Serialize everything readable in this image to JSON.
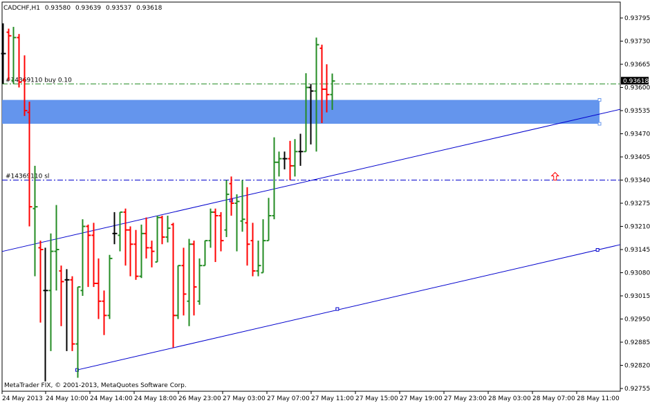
{
  "header": {
    "symbol": "CADCHF,H1",
    "open": "0.93580",
    "high": "0.93639",
    "low": "0.93537",
    "close": "0.93618"
  },
  "copyright": "MetaTrader FIX, © 2001-2013, MetaQuotes Software Corp.",
  "order_labels": {
    "buy": "#14369110 buy 0.10",
    "sl": "#14369110 sl"
  },
  "current_price_tag": "0.93618",
  "colors": {
    "up_bar": "#228b22",
    "down_bar": "#ff0000",
    "neutral_bar": "#000000",
    "channel": "#0000cd",
    "zone": "#6495ed",
    "order_line": "#228b22",
    "sl_line": "#0000cd",
    "arrow": "#ff0000"
  },
  "chart_data": {
    "type": "ohlc",
    "y_ticks": [
      "0.93795",
      "0.93730",
      "0.93665",
      "0.93600",
      "0.93535",
      "0.93470",
      "0.93405",
      "0.93340",
      "0.93275",
      "0.93210",
      "0.93145",
      "0.93080",
      "0.93015",
      "0.92950",
      "0.92885",
      "0.92820",
      "0.92755"
    ],
    "ylim": [
      0.92745,
      0.93835
    ],
    "x_ticks": [
      "24 May 2013",
      "24 May 10:00",
      "24 May 14:00",
      "24 May 18:00",
      "26 May 23:00",
      "27 May 03:00",
      "27 May 07:00",
      "27 May 11:00",
      "27 May 15:00",
      "27 May 19:00",
      "27 May 23:00",
      "28 May 03:00",
      "28 May 07:00",
      "28 May 11:00"
    ],
    "buy_price": 0.9361,
    "sl_price": 0.9334,
    "zone": [
      0.93498,
      0.93565
    ],
    "channel_upper": [
      [
        0,
        0.9314
      ],
      [
        112,
        0.93524
      ]
    ],
    "channel_lower": [
      [
        14,
        0.92807
      ],
      [
        112,
        0.93144
      ]
    ],
    "bars": [
      [
        0.93695,
        0.9378,
        0.9361,
        0.93695
      ],
      [
        0.93755,
        0.93765,
        0.9362,
        0.93745
      ],
      [
        0.9362,
        0.9377,
        0.9361,
        0.9374
      ],
      [
        0.9374,
        0.9375,
        0.936,
        0.93615
      ],
      [
        0.9362,
        0.9369,
        0.9352,
        0.93535
      ],
      [
        0.9353,
        0.9356,
        0.9321,
        0.93265
      ],
      [
        0.9326,
        0.9338,
        0.9307,
        0.93265
      ],
      [
        0.9315,
        0.9317,
        0.9294,
        0.93145
      ],
      [
        0.9303,
        0.9315,
        0.92775,
        0.9303
      ],
      [
        0.9303,
        0.9319,
        0.9286,
        0.9314
      ],
      [
        0.9314,
        0.9327,
        0.9303,
        0.93145
      ],
      [
        0.93085,
        0.931,
        0.9293,
        0.93055
      ],
      [
        0.9306,
        0.9309,
        0.9286,
        0.9306
      ],
      [
        0.9306,
        0.9307,
        0.9286,
        0.9288
      ],
      [
        0.9288,
        0.9304,
        0.92785,
        0.9304
      ],
      [
        0.9303,
        0.9323,
        0.93015,
        0.9321
      ],
      [
        0.9321,
        0.93215,
        0.9304,
        0.93185
      ],
      [
        0.93185,
        0.9322,
        0.9304,
        0.9305
      ],
      [
        0.9305,
        0.9312,
        0.9295,
        0.93
      ],
      [
        0.93,
        0.9303,
        0.92905,
        0.9296
      ],
      [
        0.9296,
        0.9313,
        0.9295,
        0.9312
      ],
      [
        0.9319,
        0.9325,
        0.9316,
        0.9319
      ],
      [
        0.93185,
        0.9325,
        0.9314,
        0.9325
      ],
      [
        0.9325,
        0.9326,
        0.931,
        0.932
      ],
      [
        0.932,
        0.9321,
        0.9307,
        0.9316
      ],
      [
        0.9316,
        0.932,
        0.9306,
        0.9307
      ],
      [
        0.9307,
        0.93215,
        0.93065,
        0.9319
      ],
      [
        0.9319,
        0.93235,
        0.9312,
        0.9315
      ],
      [
        0.9315,
        0.9317,
        0.93095,
        0.9314
      ],
      [
        0.9311,
        0.9324,
        0.9311,
        0.93235
      ],
      [
        0.93235,
        0.9324,
        0.9316,
        0.9318
      ],
      [
        0.9318,
        0.9324,
        0.93165,
        0.93205
      ],
      [
        0.93215,
        0.9322,
        0.9287,
        0.9296
      ],
      [
        0.9296,
        0.931,
        0.9295,
        0.931
      ],
      [
        0.931,
        0.9315,
        0.9296,
        0.9302
      ],
      [
        0.93,
        0.93175,
        0.9293,
        0.9316
      ],
      [
        0.9316,
        0.9317,
        0.9296,
        0.9304
      ],
      [
        0.93,
        0.9312,
        0.9299,
        0.931
      ],
      [
        0.931,
        0.9317,
        0.931,
        0.9317
      ],
      [
        0.9317,
        0.9326,
        0.9315,
        0.9325
      ],
      [
        0.9325,
        0.9326,
        0.9311,
        0.9324
      ],
      [
        0.9324,
        0.9325,
        0.9314,
        0.9317
      ],
      [
        0.932,
        0.9334,
        0.9318,
        0.933
      ],
      [
        0.9333,
        0.9335,
        0.9324,
        0.93275
      ],
      [
        0.93275,
        0.933,
        0.9314,
        0.9328
      ],
      [
        0.93225,
        0.9334,
        0.93195,
        0.9323
      ],
      [
        0.9322,
        0.9332,
        0.931,
        0.9316
      ],
      [
        0.9317,
        0.9322,
        0.9307,
        0.93085
      ],
      [
        0.93085,
        0.9317,
        0.9307,
        0.931
      ],
      [
        0.9308,
        0.9323,
        0.9308,
        0.9317
      ],
      [
        0.9317,
        0.9329,
        0.9317,
        0.9324
      ],
      [
        0.9324,
        0.9346,
        0.9323,
        0.9339
      ],
      [
        0.9339,
        0.9342,
        0.9335,
        0.934
      ],
      [
        0.934,
        0.9342,
        0.9337,
        0.934
      ],
      [
        0.934,
        0.9345,
        0.9334,
        0.9338
      ],
      [
        0.9338,
        0.93455,
        0.9335,
        0.9342
      ],
      [
        0.9342,
        0.9347,
        0.9338,
        0.9342
      ],
      [
        0.9342,
        0.9364,
        0.9342,
        0.936
      ],
      [
        0.936,
        0.9361,
        0.9344,
        0.9359
      ],
      [
        0.9359,
        0.9374,
        0.9342,
        0.9372
      ],
      [
        0.9371,
        0.9372,
        0.935,
        0.93595
      ],
      [
        0.93595,
        0.93665,
        0.9353,
        0.9358
      ],
      [
        0.9358,
        0.93639,
        0.93537,
        0.93618
      ]
    ]
  }
}
